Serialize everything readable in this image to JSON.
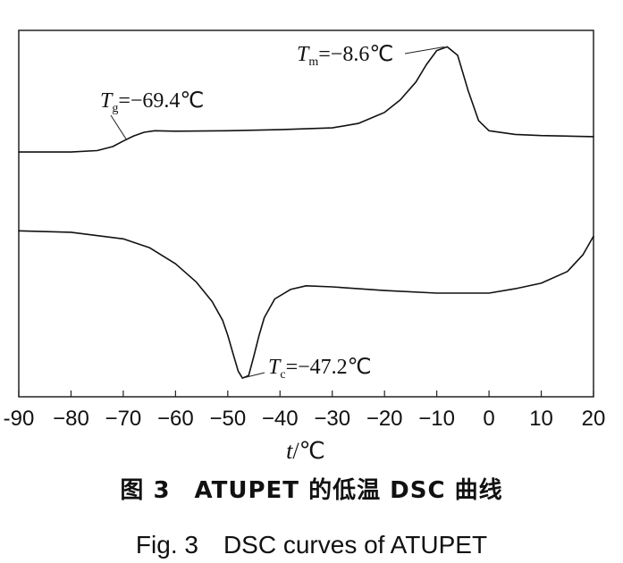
{
  "chart_data": {
    "type": "line",
    "xlabel_var": "t",
    "xlabel_unit": "/℃",
    "xlim": [
      -90,
      20
    ],
    "xticks": [
      -90,
      -80,
      -70,
      -60,
      -50,
      -40,
      -30,
      -20,
      -10,
      0,
      10,
      20
    ],
    "tick_labels": [
      "-90",
      "−80",
      "−70",
      "−60",
      "−50",
      "−40",
      "−30",
      "−20",
      "−10",
      "0",
      "10",
      "20"
    ],
    "ylim": [
      0,
      100
    ],
    "grid": false,
    "series": [
      {
        "x": [
          -90,
          -80,
          -75,
          -72,
          -70,
          -68,
          -66,
          -64,
          -60,
          -50,
          -40,
          -30,
          -25,
          -20,
          -17,
          -14,
          -12,
          -10,
          -8,
          -6,
          -4,
          -2,
          0,
          5,
          10,
          20
        ],
        "y": [
          66.8,
          66.8,
          67.2,
          68.3,
          69.8,
          71.2,
          72.2,
          72.6,
          72.5,
          72.6,
          72.9,
          73.4,
          74.6,
          77.6,
          81.0,
          85.9,
          90.6,
          94.5,
          95.5,
          93.2,
          83.6,
          75.4,
          72.6,
          71.6,
          71.3,
          71.0
        ]
      },
      {
        "x": [
          -90,
          -80,
          -70,
          -65,
          -60,
          -56,
          -53,
          -51,
          -50,
          -49,
          -48,
          -47.2,
          -46,
          -45,
          -44,
          -43,
          -41,
          -38,
          -35,
          -30,
          -20,
          -10,
          0,
          5,
          10,
          15,
          18,
          20
        ],
        "y": [
          45.3,
          44.9,
          43.1,
          40.7,
          36.3,
          31.3,
          26.0,
          20.9,
          16.8,
          11.8,
          7.0,
          5.1,
          5.8,
          11.1,
          16.8,
          21.6,
          26.7,
          29.3,
          30.3,
          30.0,
          29.0,
          28.3,
          28.3,
          29.5,
          31.0,
          34.2,
          38.8,
          43.8
        ]
      }
    ],
    "annotations": [
      {
        "var": "T",
        "sub": "g",
        "value": "=−69.4℃",
        "x": -69.4,
        "y": 70.2
      },
      {
        "var": "T",
        "sub": "m",
        "value": "=−8.6℃",
        "x": -8.6,
        "y": 95.5
      },
      {
        "var": "T",
        "sub": "c",
        "value": "=−47.2℃",
        "x": -47.2,
        "y": 5.1
      }
    ]
  },
  "caption_cn": "图 3　ATUPET 的低温 DSC 曲线",
  "caption_en": "Fig. 3　DSC curves of ATUPET"
}
